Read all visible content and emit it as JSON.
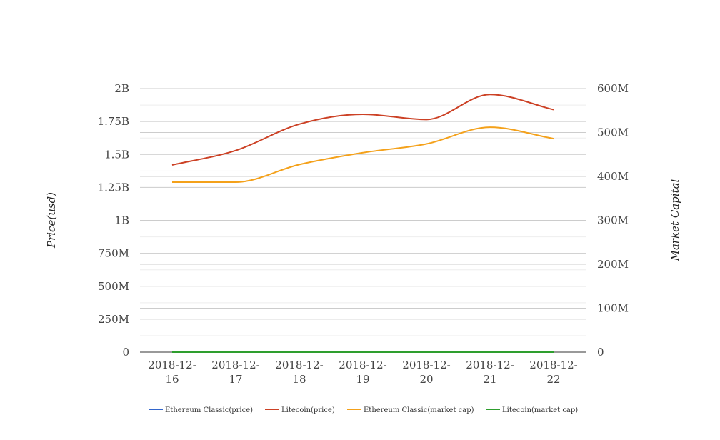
{
  "chart_data": {
    "type": "line",
    "categories": [
      [
        "2018-12-",
        "16"
      ],
      [
        "2018-12-",
        "17"
      ],
      [
        "2018-12-",
        "18"
      ],
      [
        "2018-12-",
        "19"
      ],
      [
        "2018-12-",
        "20"
      ],
      [
        "2018-12-",
        "21"
      ],
      [
        "2018-12-",
        "22"
      ]
    ],
    "y_left": {
      "label": "Price(usd)",
      "ticks": [
        "0",
        "250M",
        "500M",
        "750M",
        "1B",
        "1.25B",
        "1.5B",
        "1.75B",
        "2B"
      ],
      "range": [
        0,
        2000000000
      ]
    },
    "y_right": {
      "label": "Market Capital",
      "ticks": [
        "0",
        "100M",
        "200M",
        "300M",
        "400M",
        "500M",
        "600M"
      ],
      "range": [
        0,
        600000000
      ]
    },
    "series": [
      {
        "name": "Ethereum Classic(price)",
        "color": "#3366cc",
        "axis": "left",
        "values": [
          5,
          5,
          5,
          5,
          5,
          5,
          5
        ]
      },
      {
        "name": "Litecoin(price)",
        "color": "#cc4125",
        "axis": "left",
        "values": [
          1420000000,
          1530000000,
          1730000000,
          1805000000,
          1765000000,
          1955000000,
          1840000000
        ]
      },
      {
        "name": "Ethereum Classic(market cap)",
        "color": "#f4a11a",
        "axis": "right",
        "values": [
          387000000,
          387000000,
          427000000,
          454000000,
          474000000,
          512000000,
          486000000
        ]
      },
      {
        "name": "Litecoin(market cap)",
        "color": "#2e9e2e",
        "axis": "right",
        "values": [
          100,
          100,
          100,
          100,
          100,
          100,
          100
        ]
      }
    ],
    "grid": true,
    "legend_position": "bottom"
  }
}
